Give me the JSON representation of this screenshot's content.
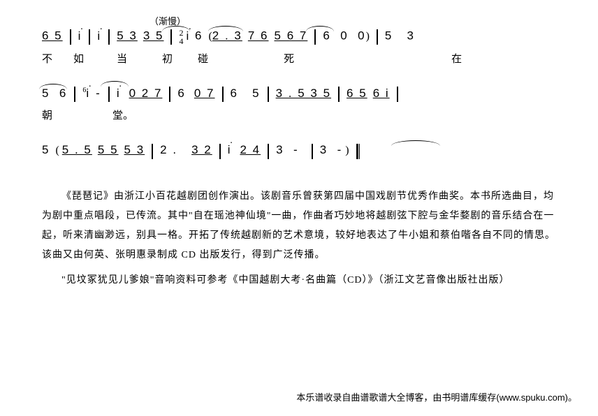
{
  "annotation": "（渐慢）",
  "line1_notes": "6 5  |  i  |  i  |  5 3  3 5  | 2/4 i 6  ( 2 . 3  7 6  5 6 7  |  6  0  0 )  |  5   3",
  "line1_lyrics_chars": [
    "不",
    "如",
    "当",
    "初",
    "碰",
    "死",
    "在"
  ],
  "line1_lyrics_gaps": [
    0,
    30,
    47,
    50,
    36,
    108,
    225
  ],
  "line2_notes": "5  6  |  i  -  |  i   0 2 7  |  6   0 7  |  6   5  |  3 . 5 3 5  |  6 5  6 i  |",
  "line2_lyrics_chars": [
    "朝",
    "堂",
    "。"
  ],
  "line2_lyrics_gaps": [
    0,
    86,
    0
  ],
  "line3_notes": "5  ( 5 . 5  5 5  5 3  |  2 .     3 2  |  i   2 4  |  3  -   |  3  - )",
  "para1": "《琵琶记》由浙江小百花越剧团创作演出。该剧音乐曾获第四届中国戏剧节优秀作曲奖。本书所选曲目，均为剧中重点唱段，已传流。其中\"自在瑶池神仙境\"一曲，作曲者巧妙地将越剧弦下腔与金华婺剧的音乐结合在一起，听来清幽渺远，别具一格。开拓了传统越剧新的艺术意境，较好地表达了牛小姐和蔡伯喈各自不同的情思。该曲又由何英、张明惠录制成 CD 出版发行，得到广泛传播。",
  "para2": "\"见坟冢犹见儿爹娘\"音响资料可参考《中国越剧大考·名曲篇（CD）》（浙江文艺音像出版社出版）",
  "footer": "本乐谱收录自曲谱歌谱大全博客，由书明谱库缓存(www.spuku.com)。",
  "colors": {
    "text": "#000000",
    "bg": "#ffffff"
  }
}
